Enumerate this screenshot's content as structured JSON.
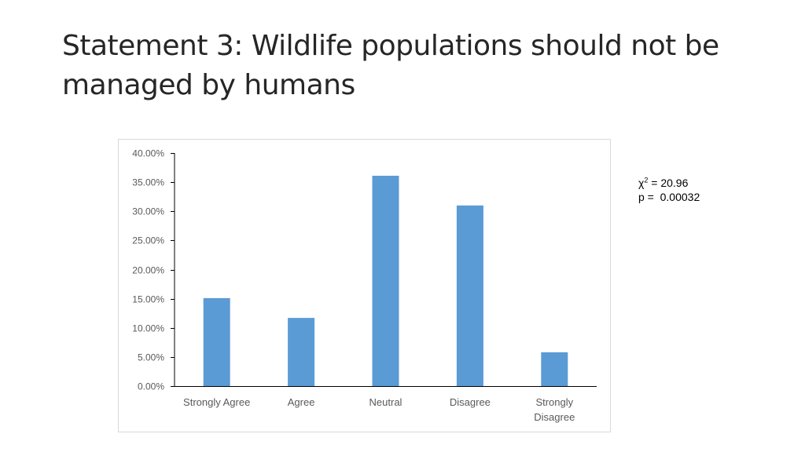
{
  "slide": {
    "title": "Statement 3: Wildlife populations should not be managed by humans"
  },
  "stats": {
    "chi_symbol": "χ",
    "chi_power": "2",
    "chi_value": " = 20.96",
    "p_text": "p =  0.00032"
  },
  "colors": {
    "bar": "#5b9bd5",
    "axis": "#000000",
    "tick_text": "#595959",
    "frame": "#d9d9d9"
  },
  "chart_data": {
    "type": "bar",
    "title": "",
    "xlabel": "",
    "ylabel": "",
    "categories": [
      "Strongly Agree",
      "Agree",
      "Neutral",
      "Disagree",
      "Strongly Disagree"
    ],
    "category_lines": [
      [
        "Strongly Agree"
      ],
      [
        "Agree"
      ],
      [
        "Neutral"
      ],
      [
        "Disagree"
      ],
      [
        "Strongly",
        "Disagree"
      ]
    ],
    "values": [
      15.1,
      11.7,
      36.1,
      31.0,
      5.8
    ],
    "ylim": [
      0,
      40
    ],
    "ytick_step": 5,
    "ytick_labels": [
      "0.00%",
      "5.00%",
      "10.00%",
      "15.00%",
      "20.00%",
      "25.00%",
      "30.00%",
      "35.00%",
      "40.00%"
    ],
    "grid": false,
    "legend": "none"
  }
}
